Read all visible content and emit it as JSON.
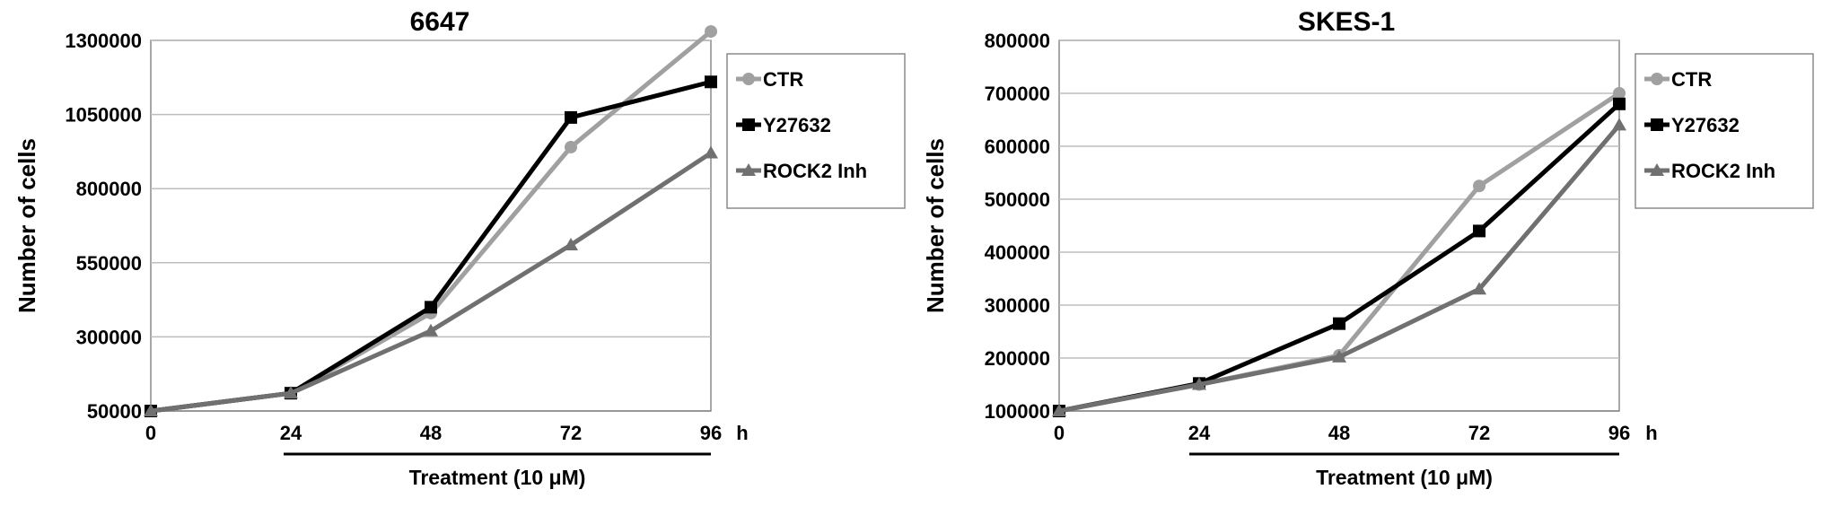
{
  "chart_data": [
    {
      "type": "line",
      "title": "6647",
      "ylabel": "Number of cells",
      "xlabel": "Treatment (10 μM)",
      "x_unit": "h",
      "x": [
        0,
        24,
        48,
        72,
        96
      ],
      "ylim": [
        50000,
        1300000
      ],
      "yticks": [
        50000,
        300000,
        550000,
        800000,
        1050000,
        1300000
      ],
      "ytick_labels": [
        "50000",
        "300000",
        "550000",
        "800000",
        "1050000",
        "1300000"
      ],
      "grid": true,
      "legend": "right",
      "series": [
        {
          "name": "CTR",
          "color": "#a0a0a0",
          "marker": "circle",
          "values": [
            50000,
            110000,
            380000,
            940000,
            1330000
          ]
        },
        {
          "name": "Y27632",
          "color": "#000000",
          "marker": "square",
          "values": [
            50000,
            110000,
            400000,
            1040000,
            1160000
          ]
        },
        {
          "name": "ROCK2 Inh",
          "color": "#707070",
          "marker": "triangle",
          "values": [
            50000,
            110000,
            320000,
            610000,
            920000
          ]
        }
      ]
    },
    {
      "type": "line",
      "title": "SKES-1",
      "ylabel": "Number of cells",
      "xlabel": "Treatment (10 μM)",
      "x_unit": "h",
      "x": [
        0,
        24,
        48,
        72,
        96
      ],
      "ylim": [
        100000,
        800000
      ],
      "yticks": [
        100000,
        200000,
        300000,
        400000,
        500000,
        600000,
        700000,
        800000
      ],
      "ytick_labels": [
        "100000",
        "200000",
        "300000",
        "400000",
        "500000",
        "600000",
        "700000",
        "800000"
      ],
      "grid": true,
      "legend": "right",
      "series": [
        {
          "name": "CTR",
          "color": "#a0a0a0",
          "marker": "circle",
          "values": [
            100000,
            150000,
            205000,
            525000,
            700000
          ]
        },
        {
          "name": "Y27632",
          "color": "#000000",
          "marker": "square",
          "values": [
            100000,
            152000,
            265000,
            440000,
            680000
          ]
        },
        {
          "name": "ROCK2 Inh",
          "color": "#707070",
          "marker": "triangle",
          "values": [
            100000,
            150000,
            202000,
            330000,
            640000
          ]
        }
      ]
    }
  ]
}
